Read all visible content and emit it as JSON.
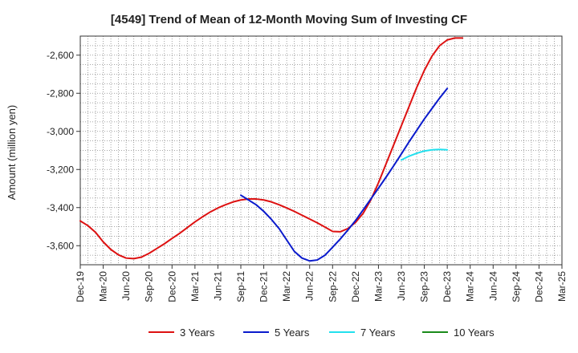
{
  "chart_data": {
    "type": "line",
    "title": "[4549]  Trend of Mean of 12-Month Moving Sum of Investing CF",
    "xlabel": "",
    "ylabel": "Amount (million yen)",
    "ylim": [
      -3700,
      -2500
    ],
    "yticks": [
      -3600,
      -3400,
      -3200,
      -3000,
      -2800,
      -2600
    ],
    "ytick_labels": [
      "-3,600",
      "-3,400",
      "-3,200",
      "-3,000",
      "-2,800",
      "-2,600"
    ],
    "x_tick_labels": [
      "Dec-19",
      "Mar-20",
      "Jun-20",
      "Sep-20",
      "Dec-20",
      "Mar-21",
      "Jun-21",
      "Sep-21",
      "Dec-21",
      "Mar-22",
      "Jun-22",
      "Sep-22",
      "Dec-22",
      "Mar-23",
      "Jun-23",
      "Sep-23",
      "Dec-23",
      "Mar-24",
      "Jun-24",
      "Sep-24",
      "Dec-24",
      "Mar-25"
    ],
    "x_start": "Dec-19",
    "months_total": 63,
    "grid": true,
    "legend_position": "bottom",
    "series": [
      {
        "name": "3 Years",
        "color": "#dd1111",
        "start_month_index": 0,
        "values": [
          -3470,
          -3495,
          -3530,
          -3580,
          -3620,
          -3648,
          -3665,
          -3668,
          -3660,
          -3640,
          -3615,
          -3590,
          -3562,
          -3535,
          -3505,
          -3475,
          -3448,
          -3423,
          -3402,
          -3385,
          -3370,
          -3360,
          -3355,
          -3355,
          -3360,
          -3370,
          -3385,
          -3402,
          -3420,
          -3440,
          -3460,
          -3480,
          -3502,
          -3525,
          -3527,
          -3510,
          -3478,
          -3430,
          -3360,
          -3270,
          -3170,
          -3070,
          -2970,
          -2870,
          -2770,
          -2680,
          -2605,
          -2550,
          -2520,
          -2510,
          -2510
        ]
      },
      {
        "name": "5 Years",
        "color": "#0a1acc",
        "start_month_index": 21,
        "values": [
          -3335,
          -3360,
          -3385,
          -3420,
          -3462,
          -3510,
          -3570,
          -3630,
          -3665,
          -3680,
          -3675,
          -3650,
          -3608,
          -3565,
          -3518,
          -3468,
          -3412,
          -3355,
          -3298,
          -3240,
          -3180,
          -3118,
          -3055,
          -2995,
          -2935,
          -2880,
          -2825,
          -2775
        ]
      },
      {
        "name": "7 Years",
        "color": "#22e0ee",
        "start_month_index": 42,
        "values": [
          -3150,
          -3130,
          -3115,
          -3103,
          -3097,
          -3095,
          -3097
        ]
      },
      {
        "name": "10 Years",
        "color": "#1a8a1a",
        "start_month_index": 0,
        "values": []
      }
    ]
  }
}
